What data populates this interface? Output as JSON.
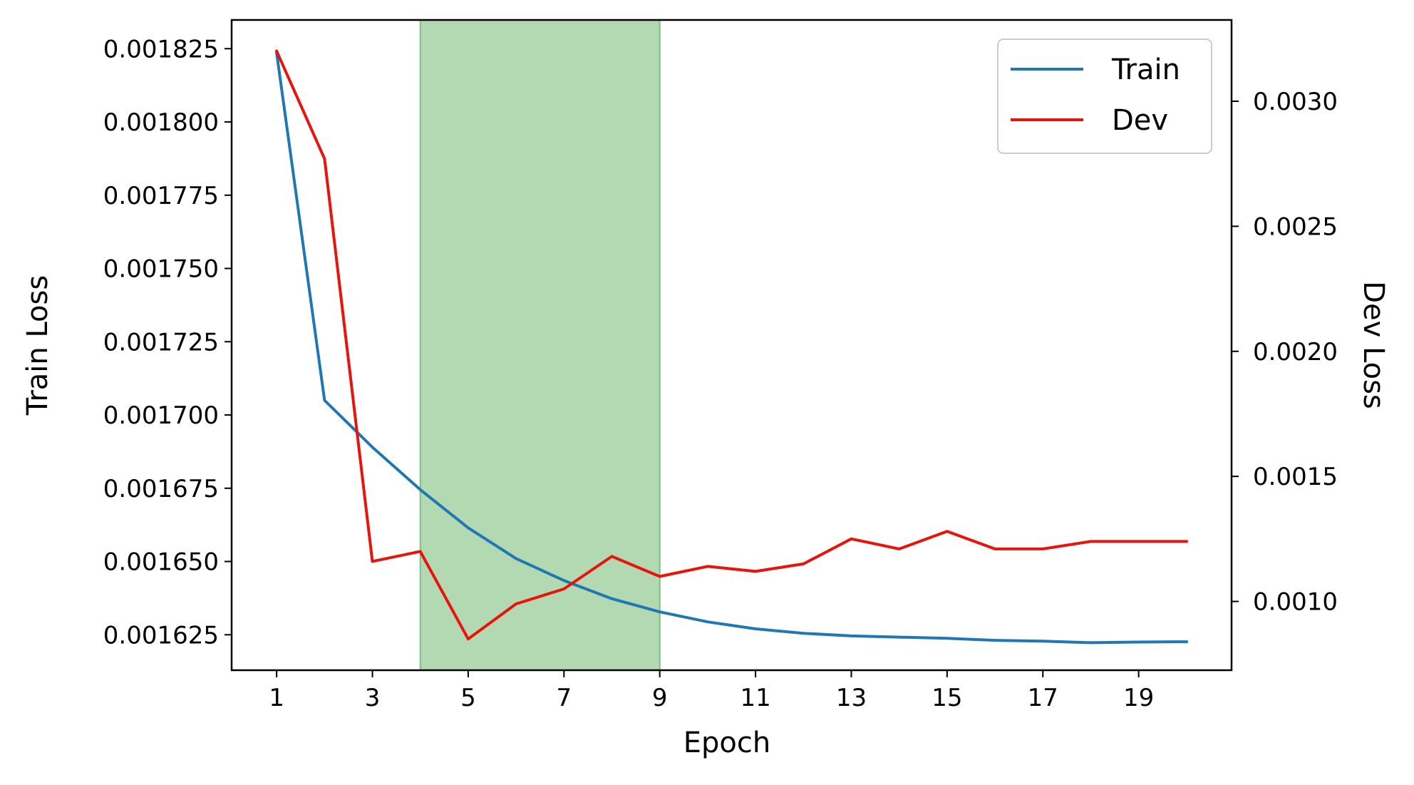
{
  "chart_data": {
    "type": "line",
    "xlabel": "Epoch",
    "ylabel_left": "Train Loss",
    "ylabel_right": "Dev Loss",
    "x": [
      1,
      2,
      3,
      4,
      5,
      6,
      7,
      8,
      9,
      10,
      11,
      12,
      13,
      14,
      15,
      16,
      17,
      18,
      19,
      20
    ],
    "x_ticks": [
      1,
      3,
      5,
      7,
      9,
      11,
      13,
      15,
      17,
      19
    ],
    "x_tick_labels": [
      "1",
      "3",
      "5",
      "7",
      "9",
      "11",
      "13",
      "15",
      "17",
      "19"
    ],
    "xlim": [
      0.06,
      20.94
    ],
    "y_left_ticks": [
      0.001625,
      0.00165,
      0.001675,
      0.0017,
      0.001725,
      0.00175,
      0.001775,
      0.0018,
      0.001825
    ],
    "y_left_tick_labels": [
      "0.001625",
      "0.001650",
      "0.001675",
      "0.001700",
      "0.001725",
      "0.001750",
      "0.001775",
      "0.001800",
      "0.001825"
    ],
    "ylim_left": [
      0.0016129,
      0.0018348
    ],
    "y_right_ticks": [
      0.001,
      0.0015,
      0.002,
      0.0025,
      0.003
    ],
    "y_right_tick_labels": [
      "0.0010",
      "0.0015",
      "0.0020",
      "0.0025",
      "0.0030"
    ],
    "ylim_right": [
      0.000725,
      0.003325
    ],
    "shaded_region": {
      "x_start": 4,
      "x_end": 9,
      "color": "#b2d9b2",
      "edge_color": "#7fbf7f"
    },
    "series": [
      {
        "name": "Train",
        "axis": "left",
        "color": "#1f77b4",
        "values": [
          0.0018235,
          0.001705,
          0.001689,
          0.0016745,
          0.0016615,
          0.001651,
          0.0016435,
          0.0016373,
          0.0016328,
          0.0016294,
          0.001627,
          0.0016255,
          0.0016246,
          0.0016242,
          0.0016238,
          0.0016231,
          0.0016228,
          0.0016223,
          0.0016225,
          0.0016226
        ]
      },
      {
        "name": "Dev",
        "axis": "right",
        "color": "#e8140c",
        "values": [
          0.0032,
          0.00277,
          0.00116,
          0.0012,
          0.00085,
          0.00099,
          0.00105,
          0.00118,
          0.0011,
          0.00114,
          0.00112,
          0.00115,
          0.00125,
          0.00121,
          0.00128,
          0.00121,
          0.00121,
          0.00124,
          0.00124,
          0.00124
        ]
      }
    ],
    "legend": {
      "placement": "top-right",
      "entries": [
        "Train",
        "Dev"
      ]
    },
    "grid": false
  }
}
